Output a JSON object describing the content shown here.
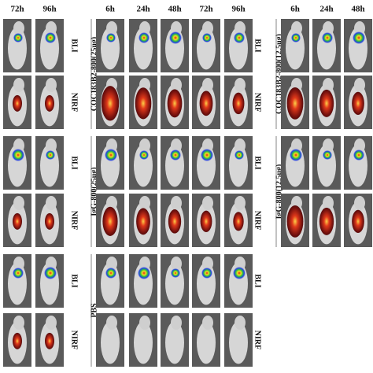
{
  "panels": [
    {
      "columns": [
        "72h",
        "96h"
      ],
      "rows": [
        "BLI",
        "NIRF",
        "BLI",
        "NIRF",
        "BLI",
        "NIRF"
      ]
    },
    {
      "columns": [
        "6h",
        "24h",
        "48h",
        "72h",
        "96h"
      ],
      "groups": [
        {
          "label": "COC183B2-800(25ug)",
          "rows": [
            "BLI",
            "NIRF"
          ]
        },
        {
          "label": "IgG-800(25ug)",
          "rows": [
            "BLI",
            "NIRF"
          ]
        },
        {
          "label": "PBS",
          "rows": [
            "BLI",
            "NIRF"
          ]
        }
      ]
    },
    {
      "columns": [
        "6h",
        "24h",
        "48h"
      ],
      "groups": [
        {
          "label": "COC183B2-800(12.5ug)"
        },
        {
          "label": "IgG-800(12.5ug)"
        }
      ]
    }
  ]
}
